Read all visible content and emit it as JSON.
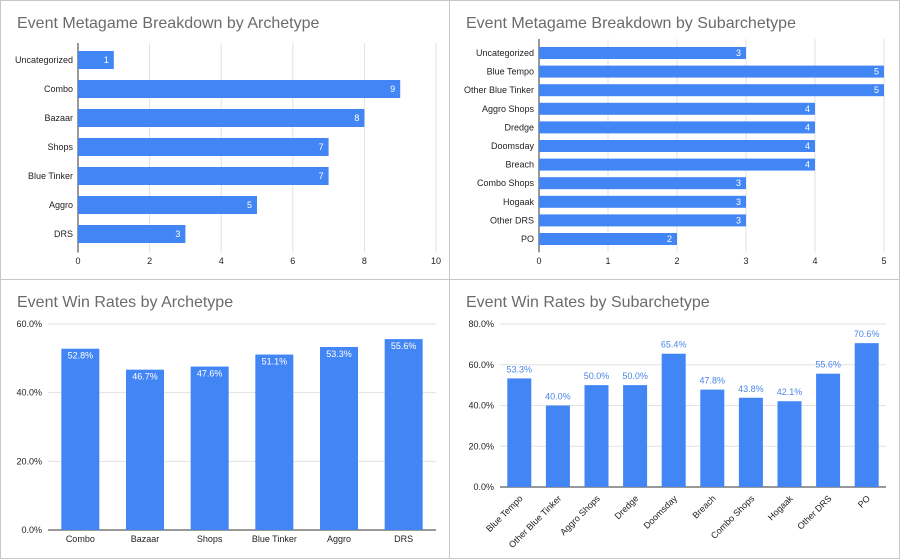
{
  "colors": {
    "bar": "#4285f4",
    "label_out": "#4a86e8"
  },
  "chart_data": [
    {
      "type": "bar",
      "orientation": "horizontal",
      "title": "Event Metagame Breakdown by Archetype",
      "categories": [
        "Uncategorized",
        "Combo",
        "Bazaar",
        "Shops",
        "Blue Tinker",
        "Aggro",
        "DRS"
      ],
      "values": [
        1,
        9,
        8,
        7,
        7,
        5,
        3
      ],
      "xlim": [
        0,
        10
      ],
      "ticks": [
        0,
        2,
        4,
        6,
        8,
        10
      ],
      "tick_labels": [
        "0",
        "2",
        "4",
        "6",
        "8",
        "10"
      ],
      "grid": true
    },
    {
      "type": "bar",
      "orientation": "horizontal",
      "title": "Event Metagame Breakdown by Subarchetype",
      "categories": [
        "Uncategorized",
        "Blue Tempo",
        "Other Blue Tinker",
        "Aggro Shops",
        "Dredge",
        "Doomsday",
        "Breach",
        "Combo Shops",
        "Hogaak",
        "Other DRS",
        "PO"
      ],
      "values": [
        3,
        5,
        5,
        4,
        4,
        4,
        4,
        3,
        3,
        3,
        2
      ],
      "xlim": [
        0,
        5
      ],
      "ticks": [
        0,
        1,
        2,
        3,
        4,
        5
      ],
      "tick_labels": [
        "0",
        "1",
        "2",
        "3",
        "4",
        "5"
      ],
      "grid": true
    },
    {
      "type": "bar",
      "orientation": "vertical",
      "title": "Event Win Rates by Archetype",
      "categories": [
        "Combo",
        "Bazaar",
        "Shops",
        "Blue Tinker",
        "Aggro",
        "DRS"
      ],
      "values": [
        52.8,
        46.7,
        47.6,
        51.1,
        53.3,
        55.6
      ],
      "value_labels": [
        "52.8%",
        "46.7%",
        "47.6%",
        "51.1%",
        "53.3%",
        "55.6%"
      ],
      "ylim": [
        0,
        60
      ],
      "ticks": [
        0,
        20,
        40,
        60
      ],
      "tick_labels": [
        "0.0%",
        "20.0%",
        "40.0%",
        "60.0%"
      ],
      "grid": true
    },
    {
      "type": "bar",
      "orientation": "vertical",
      "title": "Event Win Rates by Subarchetype",
      "categories": [
        "Blue Tempo",
        "Other Blue Tinker",
        "Aggro Shops",
        "Dredge",
        "Doomsday",
        "Breach",
        "Combo Shops",
        "Hogaak",
        "Other DRS",
        "PO"
      ],
      "values": [
        53.3,
        40.0,
        50.0,
        50.0,
        65.4,
        47.8,
        43.8,
        42.1,
        55.6,
        70.6
      ],
      "value_labels": [
        "53.3%",
        "40.0%",
        "50.0%",
        "50.0%",
        "65.4%",
        "47.8%",
        "43.8%",
        "42.1%",
        "55.6%",
        "70.6%"
      ],
      "ylim": [
        0,
        80
      ],
      "ticks": [
        0,
        20,
        40,
        60,
        80
      ],
      "tick_labels": [
        "0.0%",
        "20.0%",
        "40.0%",
        "60.0%",
        "80.0%"
      ],
      "grid": true
    }
  ]
}
